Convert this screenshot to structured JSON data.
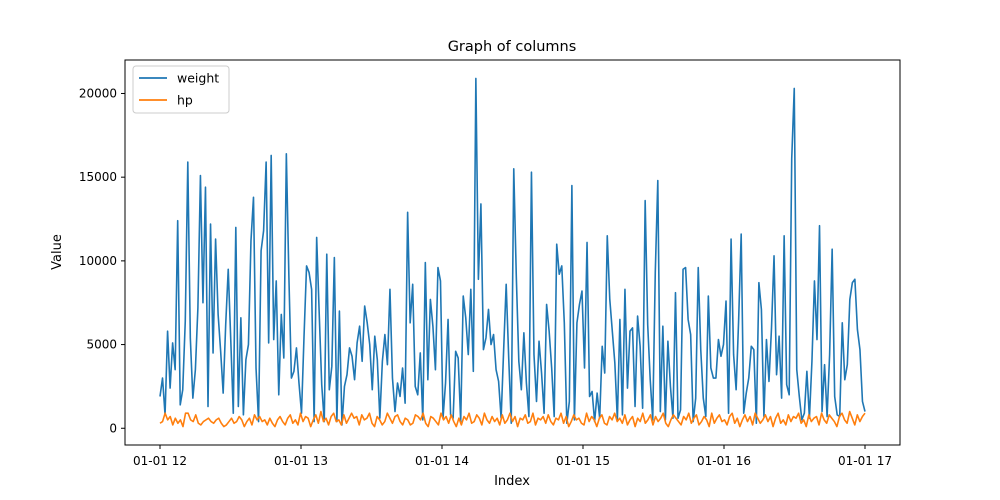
{
  "chart_data": {
    "type": "line",
    "title": "Graph of columns",
    "xlabel": "Index",
    "ylabel": "Value",
    "x_tick_labels": [
      "01-01 12",
      "01-01 13",
      "01-01 14",
      "01-01 15",
      "01-01 16",
      "01-01 17"
    ],
    "xlim": [
      0,
      5
    ],
    "y_ticks": [
      0,
      5000,
      10000,
      15000,
      20000
    ],
    "ylim": [
      -1000,
      22000
    ],
    "grid": false,
    "legend": {
      "placement": "top-left",
      "entries": [
        "weight",
        "hp"
      ]
    },
    "series": [
      {
        "name": "weight",
        "color": "#1f77b4",
        "values": [
          1900,
          3000,
          800,
          5800,
          2400,
          5100,
          3500,
          12400,
          1400,
          2300,
          6400,
          15900,
          5400,
          1800,
          3500,
          7200,
          15100,
          7500,
          14400,
          1300,
          12200,
          4500,
          11300,
          6800,
          4600,
          2100,
          6200,
          9500,
          5300,
          900,
          12000,
          1300,
          6600,
          800,
          4100,
          5000,
          11200,
          13800,
          3600,
          400,
          10600,
          11800,
          15900,
          5100,
          16300,
          5300,
          8800,
          2000,
          6800,
          4200,
          16400,
          9100,
          3000,
          3400,
          4800,
          2700,
          900,
          5500,
          9700,
          9300,
          8300,
          400,
          11400,
          6900,
          2600,
          400,
          10400,
          2300,
          3700,
          10200,
          400,
          7000,
          200,
          2500,
          3200,
          4800,
          4300,
          2900,
          5100,
          6100,
          4000,
          7300,
          6300,
          5000,
          2300,
          5500,
          4100,
          600,
          4000,
          5600,
          3800,
          8300,
          3000,
          1000,
          2700,
          1900,
          3600,
          1500,
          12900,
          6300,
          8600,
          2500,
          2000,
          4500,
          500,
          9900,
          2900,
          7700,
          6100,
          3500,
          9600,
          8800,
          600,
          2700,
          6500,
          800,
          600,
          4600,
          4200,
          400,
          7900,
          6600,
          4400,
          8300,
          3400,
          20900,
          8900,
          13400,
          4700,
          5400,
          7100,
          5000,
          5600,
          3500,
          2800,
          600,
          4700,
          8600,
          4200,
          300,
          15500,
          9100,
          4000,
          2300,
          5700,
          2700,
          700,
          15300,
          4400,
          1600,
          5200,
          3300,
          900,
          7400,
          5800,
          3600,
          700,
          11000,
          9200,
          9700,
          6300,
          300,
          1600,
          14500,
          500,
          6300,
          7400,
          8200,
          3600,
          11100,
          1900,
          2200,
          400,
          2100,
          600,
          4900,
          3300,
          11500,
          7700,
          5800,
          3900,
          500,
          6500,
          800,
          8300,
          2400,
          5800,
          6000,
          1300,
          6700,
          4900,
          1200,
          13600,
          6200,
          2900,
          500,
          9300,
          14800,
          1000,
          6100,
          500,
          5200,
          2500,
          600,
          8100,
          600,
          1100,
          9500,
          9600,
          6500,
          5600,
          400,
          1800,
          9600,
          4700,
          1800,
          700,
          7900,
          3600,
          3000,
          3000,
          5300,
          4300,
          5000,
          7600,
          900,
          11300,
          4400,
          2300,
          6500,
          11600,
          900,
          2100,
          3000,
          4900,
          4700,
          300,
          8700,
          7100,
          700,
          5300,
          2800,
          6000,
          10300,
          3200,
          5500,
          1800,
          11500,
          2600,
          2000,
          16100,
          20300,
          3500,
          1900,
          500,
          900,
          3400,
          600,
          4000,
          8800,
          5300,
          12100,
          1000,
          3800,
          700,
          4400,
          10700,
          1900,
          800,
          700,
          6300,
          2900,
          3800,
          7700,
          8700,
          8900,
          5900,
          4700,
          1600,
          1000
        ],
        "x_start": 0,
        "x_end": 5
      },
      {
        "name": "hp",
        "color": "#ff7f0e",
        "values": [
          300,
          400,
          900,
          500,
          700,
          200,
          600,
          300,
          500,
          100,
          900,
          900,
          500,
          400,
          800,
          300,
          200,
          400,
          500,
          600,
          400,
          300,
          500,
          600,
          300,
          100,
          200,
          400,
          600,
          300,
          400,
          700,
          500,
          100,
          400,
          600,
          200,
          800,
          500,
          700,
          400,
          500,
          200,
          600,
          300,
          100,
          500,
          700,
          400,
          200,
          600,
          800,
          300,
          500,
          200,
          900,
          400,
          700,
          600,
          100,
          500,
          800,
          300,
          1000,
          400,
          600,
          200,
          700,
          900,
          400,
          500,
          200,
          800,
          300,
          600,
          900,
          600,
          700,
          200,
          800,
          500,
          600,
          900,
          300,
          100,
          700,
          500,
          200,
          400,
          900,
          600,
          300,
          700,
          800,
          400,
          200,
          600,
          500,
          200,
          300,
          800,
          700,
          500,
          900,
          300,
          100,
          700,
          600,
          400,
          200,
          900,
          500,
          700,
          300,
          800,
          400,
          100,
          600,
          200,
          700,
          500,
          900,
          300,
          400,
          800,
          600,
          200,
          900,
          500,
          300,
          700,
          400,
          600,
          200,
          800,
          300,
          500,
          900,
          400,
          700,
          100,
          600,
          500,
          800,
          300,
          400,
          900,
          200,
          600,
          500,
          700,
          300,
          800,
          400,
          200,
          600,
          500,
          900,
          300,
          700,
          100,
          400,
          800,
          500,
          600,
          300,
          200,
          900,
          400,
          700,
          500,
          100,
          600,
          800,
          300,
          200,
          700,
          500,
          900,
          400,
          600,
          300,
          800,
          200,
          500,
          700,
          100,
          600,
          400,
          900,
          300,
          500,
          800,
          200,
          700,
          400,
          600,
          900,
          300,
          100,
          500,
          800,
          600,
          400,
          200,
          700,
          500,
          900,
          300,
          600,
          800,
          200,
          400,
          700,
          500,
          100,
          900,
          300,
          600,
          800,
          400,
          500,
          200,
          700,
          900,
          300,
          600,
          100,
          500,
          800,
          400,
          700,
          200,
          900,
          600,
          300,
          500,
          800,
          400,
          700,
          100,
          600,
          900,
          300,
          500,
          200,
          800,
          400,
          700,
          600,
          900,
          300,
          500,
          100,
          800,
          400,
          600,
          700,
          200,
          900,
          500,
          300,
          800,
          600,
          400,
          100,
          700,
          900,
          500,
          300,
          1000,
          600,
          200,
          800,
          400,
          700,
          900
        ],
        "x_start": 0,
        "x_end": 5
      }
    ]
  }
}
